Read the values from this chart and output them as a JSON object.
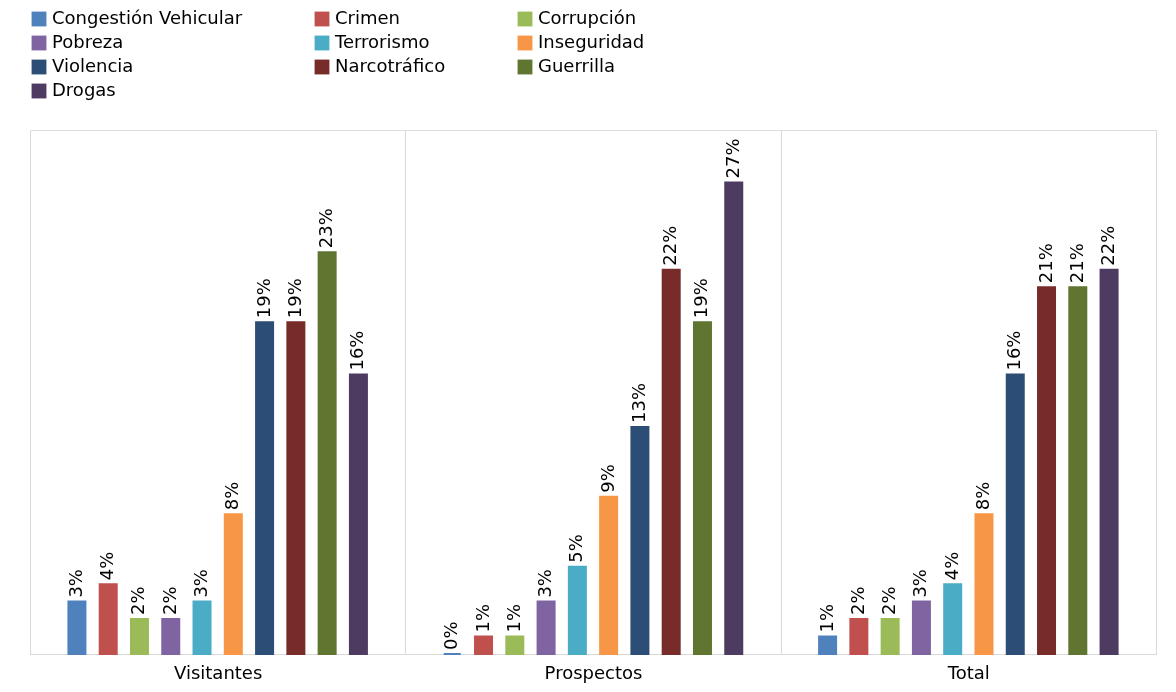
{
  "chart_data": {
    "type": "bar",
    "categories": [
      "Visitantes",
      "Prospectos",
      "Total"
    ],
    "ylim": [
      0,
      30
    ],
    "legend": "top",
    "series": [
      {
        "name": "Congestión Vehicular",
        "color": "#4f81bd",
        "values": [
          3,
          0,
          1
        ],
        "value_labels": [
          "3%",
          "0%",
          "1%"
        ]
      },
      {
        "name": "Crimen",
        "color": "#c0504d",
        "values": [
          4,
          1,
          2
        ],
        "value_labels": [
          "4%",
          "1%",
          "2%"
        ]
      },
      {
        "name": "Corrupción",
        "color": "#9bbb59",
        "values": [
          2,
          1,
          2
        ],
        "value_labels": [
          "2%",
          "1%",
          "2%"
        ]
      },
      {
        "name": "Pobreza",
        "color": "#8064a2",
        "values": [
          2,
          3,
          3
        ],
        "value_labels": [
          "2%",
          "3%",
          "3%"
        ]
      },
      {
        "name": "Terrorismo",
        "color": "#4bacc6",
        "values": [
          3,
          5,
          4
        ],
        "value_labels": [
          "3%",
          "5%",
          "4%"
        ]
      },
      {
        "name": "Inseguridad",
        "color": "#f79646",
        "values": [
          8,
          9,
          8
        ],
        "value_labels": [
          "8%",
          "9%",
          "8%"
        ]
      },
      {
        "name": "Violencia",
        "color": "#2c4d75",
        "values": [
          19,
          13,
          16
        ],
        "value_labels": [
          "19%",
          "13%",
          "16%"
        ]
      },
      {
        "name": "Narcotráfico",
        "color": "#772c2a",
        "values": [
          19,
          22,
          21
        ],
        "value_labels": [
          "19%",
          "22%",
          "21%"
        ]
      },
      {
        "name": "Guerrilla",
        "color": "#5f7530",
        "values": [
          23,
          19,
          21
        ],
        "value_labels": [
          "23%",
          "19%",
          "21%"
        ]
      },
      {
        "name": "Drogas",
        "color": "#4d3b62",
        "values": [
          16,
          27,
          22
        ],
        "value_labels": [
          "16%",
          "27%",
          "22%"
        ]
      }
    ]
  }
}
